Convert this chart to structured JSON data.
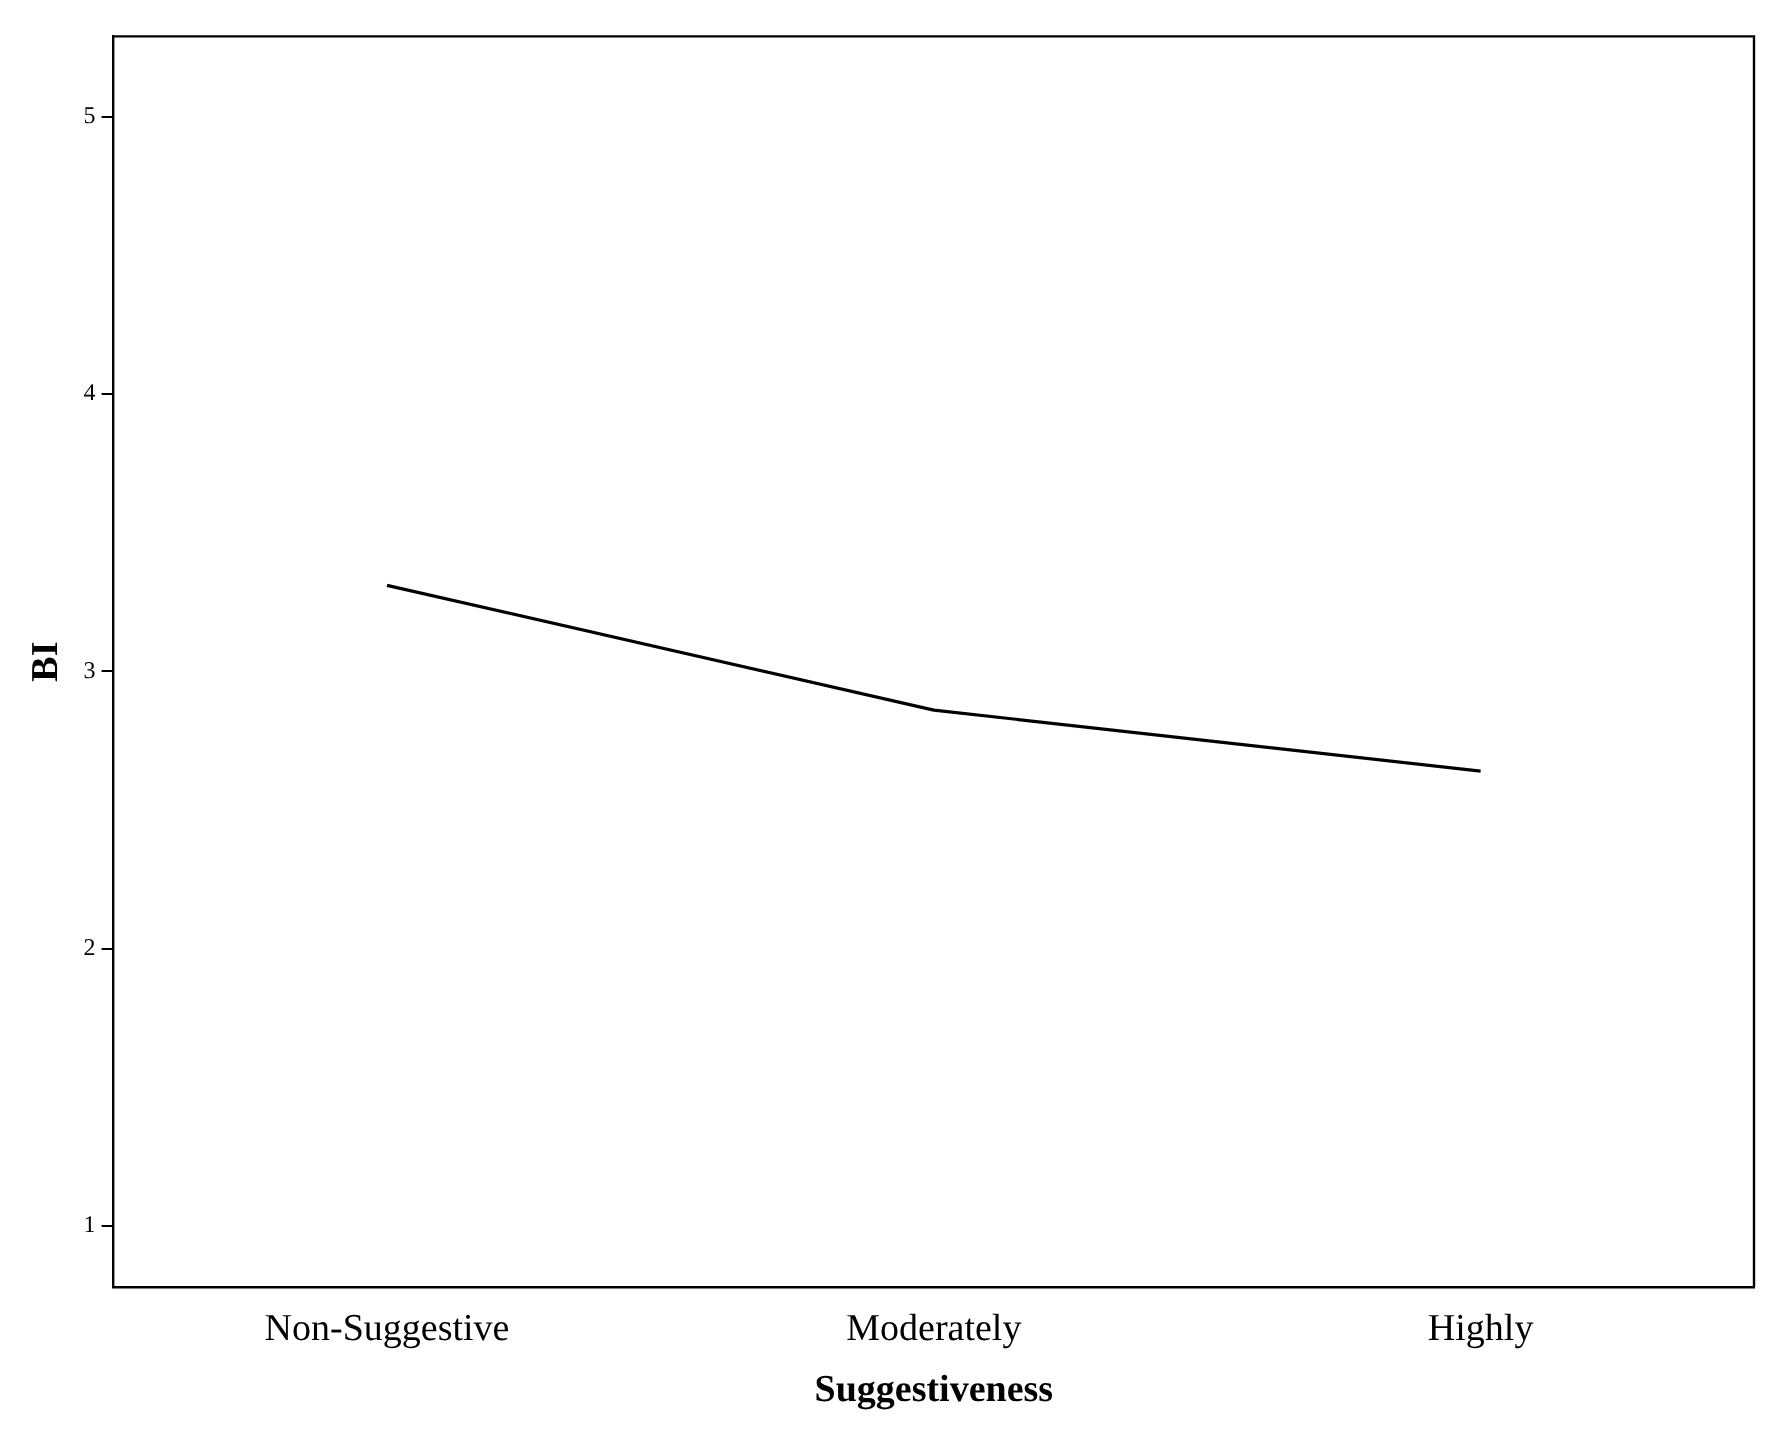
{
  "chart_data": {
    "type": "line",
    "xlabel": "Suggestiveness",
    "ylabel": "BI",
    "categories": [
      "Non-Suggestive",
      "Moderately",
      "Highly"
    ],
    "series": [
      {
        "color": "#000000",
        "values": [
          3.31,
          2.86,
          2.64
        ]
      }
    ],
    "ylim": [
      0.78,
      5.29
    ],
    "yticks": [
      1,
      2,
      3,
      4,
      5
    ],
    "grid": false,
    "legend": false,
    "marker": "none",
    "line_style": "solid"
  }
}
